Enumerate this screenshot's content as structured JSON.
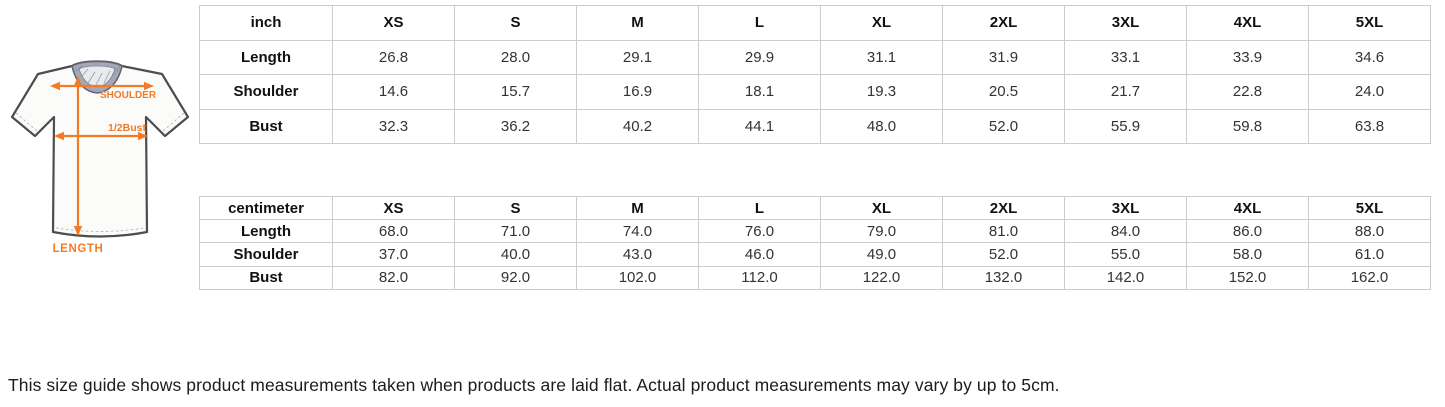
{
  "diagram": {
    "shoulder_label": "SHOULDER",
    "bust_label": "1/2Bust",
    "length_label": "LENGTH",
    "accent_color": "#f47b25",
    "outline_color": "#4d4d4d",
    "collar_color": "#a3a8b4"
  },
  "tables": [
    {
      "unit": "inch",
      "sizes": [
        "XS",
        "S",
        "M",
        "L",
        "XL",
        "2XL",
        "3XL",
        "4XL",
        "5XL"
      ],
      "rows": [
        {
          "label": "Length",
          "values": [
            "26.8",
            "28.0",
            "29.1",
            "29.9",
            "31.1",
            "31.9",
            "33.1",
            "33.9",
            "34.6"
          ]
        },
        {
          "label": "Shoulder",
          "values": [
            "14.6",
            "15.7",
            "16.9",
            "18.1",
            "19.3",
            "20.5",
            "21.7",
            "22.8",
            "24.0"
          ]
        },
        {
          "label": "Bust",
          "values": [
            "32.3",
            "36.2",
            "40.2",
            "44.1",
            "48.0",
            "52.0",
            "55.9",
            "59.8",
            "63.8"
          ]
        }
      ]
    },
    {
      "unit": "centimeter",
      "sizes": [
        "XS",
        "S",
        "M",
        "L",
        "XL",
        "2XL",
        "3XL",
        "4XL",
        "5XL"
      ],
      "rows": [
        {
          "label": "Length",
          "values": [
            "68.0",
            "71.0",
            "74.0",
            "76.0",
            "79.0",
            "81.0",
            "84.0",
            "86.0",
            "88.0"
          ]
        },
        {
          "label": "Shoulder",
          "values": [
            "37.0",
            "40.0",
            "43.0",
            "46.0",
            "49.0",
            "52.0",
            "55.0",
            "58.0",
            "61.0"
          ]
        },
        {
          "label": "Bust",
          "values": [
            "82.0",
            "92.0",
            "102.0",
            "112.0",
            "122.0",
            "132.0",
            "142.0",
            "152.0",
            "162.0"
          ]
        }
      ]
    }
  ],
  "footer": {
    "note": "This size guide shows product measurements taken when products are laid flat. Actual product measurements may vary by up to 5cm."
  }
}
